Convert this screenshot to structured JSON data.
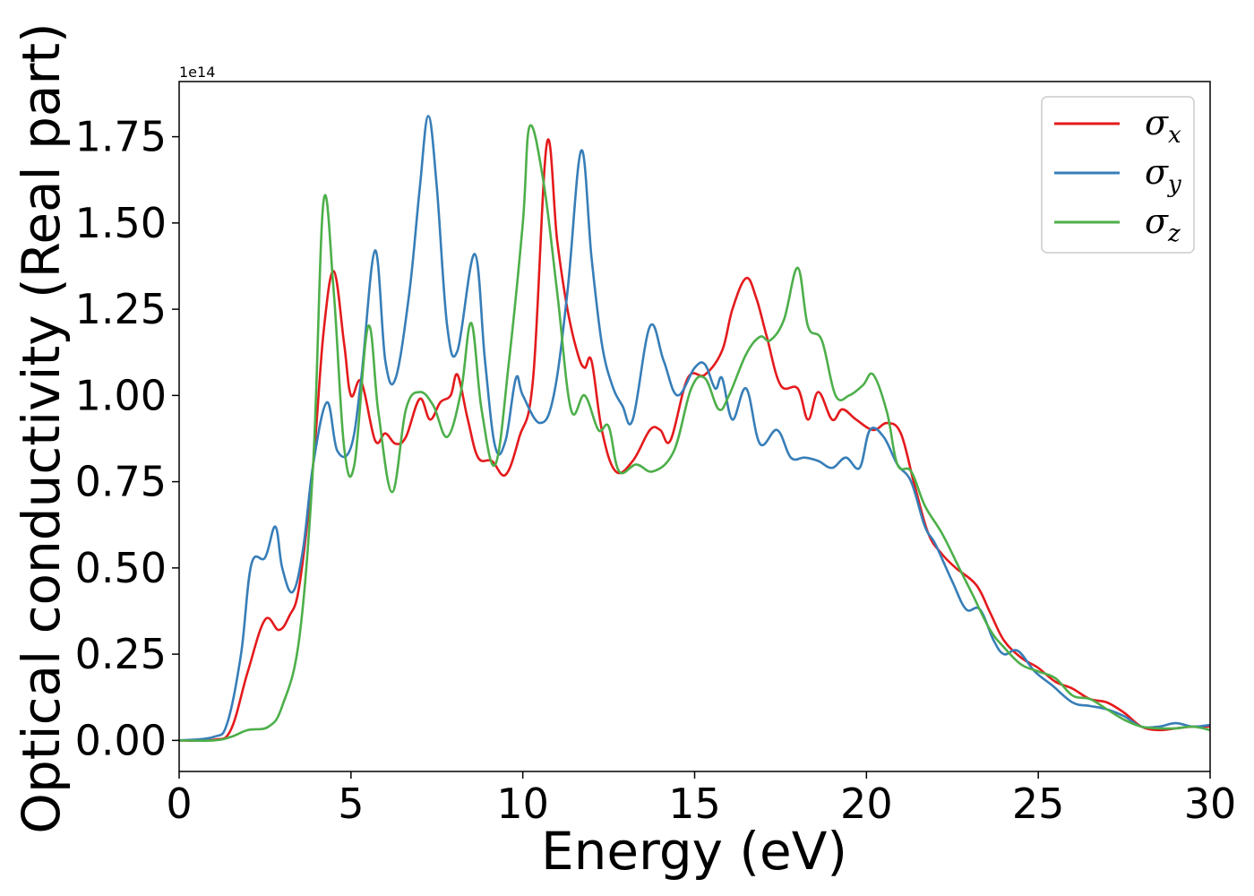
{
  "chart_data": {
    "type": "line",
    "title": "",
    "xlabel": "Energy (eV)",
    "ylabel": "Optical conductivity (Real part)",
    "y_offset_label": "1e14",
    "xlim": [
      0,
      30
    ],
    "ylim": [
      -0.09,
      1.91
    ],
    "xticks": [
      0,
      5,
      10,
      15,
      20,
      25,
      30
    ],
    "xtick_labels": [
      "0",
      "5",
      "10",
      "15",
      "20",
      "25",
      "30"
    ],
    "yticks": [
      0,
      0.25,
      0.5,
      0.75,
      1.0,
      1.25,
      1.5,
      1.75
    ],
    "ytick_labels": [
      "0.00",
      "0.25",
      "0.50",
      "0.75",
      "1.00",
      "1.25",
      "1.50",
      "1.75"
    ],
    "grid": false,
    "legend_position": "top-right",
    "series": [
      {
        "name": "σx",
        "symbol": "σ",
        "subscript": "x",
        "color": "#e41a1c",
        "points": [
          [
            0,
            0
          ],
          [
            1,
            0.002
          ],
          [
            1.5,
            0.03
          ],
          [
            2,
            0.2
          ],
          [
            2.5,
            0.35
          ],
          [
            2.9,
            0.32
          ],
          [
            3.2,
            0.36
          ],
          [
            3.5,
            0.45
          ],
          [
            3.9,
            0.8
          ],
          [
            4.2,
            1.18
          ],
          [
            4.5,
            1.36
          ],
          [
            4.8,
            1.15
          ],
          [
            5,
            1.0
          ],
          [
            5.3,
            1.04
          ],
          [
            5.7,
            0.87
          ],
          [
            6,
            0.89
          ],
          [
            6.3,
            0.86
          ],
          [
            6.6,
            0.88
          ],
          [
            7,
            0.99
          ],
          [
            7.3,
            0.93
          ],
          [
            7.6,
            0.98
          ],
          [
            7.9,
            1.0
          ],
          [
            8.1,
            1.06
          ],
          [
            8.4,
            0.93
          ],
          [
            8.7,
            0.82
          ],
          [
            9.1,
            0.81
          ],
          [
            9.5,
            0.77
          ],
          [
            9.9,
            0.88
          ],
          [
            10.3,
            1.05
          ],
          [
            10.7,
            1.73
          ],
          [
            11,
            1.45
          ],
          [
            11.3,
            1.25
          ],
          [
            11.6,
            1.12
          ],
          [
            11.8,
            1.08
          ],
          [
            12,
            1.1
          ],
          [
            12.3,
            0.9
          ],
          [
            12.7,
            0.78
          ],
          [
            13.2,
            0.81
          ],
          [
            13.7,
            0.9
          ],
          [
            14,
            0.9
          ],
          [
            14.3,
            0.87
          ],
          [
            14.8,
            1.05
          ],
          [
            15.3,
            1.06
          ],
          [
            15.8,
            1.13
          ],
          [
            16.1,
            1.25
          ],
          [
            16.5,
            1.34
          ],
          [
            16.8,
            1.28
          ],
          [
            17.1,
            1.17
          ],
          [
            17.5,
            1.03
          ],
          [
            18,
            1.02
          ],
          [
            18.3,
            0.93
          ],
          [
            18.6,
            1.01
          ],
          [
            19,
            0.93
          ],
          [
            19.3,
            0.96
          ],
          [
            19.7,
            0.93
          ],
          [
            20.2,
            0.9
          ],
          [
            20.6,
            0.92
          ],
          [
            21,
            0.89
          ],
          [
            21.4,
            0.74
          ],
          [
            21.8,
            0.6
          ],
          [
            22.2,
            0.54
          ],
          [
            22.6,
            0.5
          ],
          [
            23.2,
            0.45
          ],
          [
            23.6,
            0.37
          ],
          [
            24,
            0.29
          ],
          [
            24.5,
            0.24
          ],
          [
            25,
            0.21
          ],
          [
            25.5,
            0.17
          ],
          [
            26,
            0.15
          ],
          [
            26.5,
            0.12
          ],
          [
            27,
            0.11
          ],
          [
            27.5,
            0.08
          ],
          [
            28,
            0.04
          ],
          [
            28.5,
            0.03
          ],
          [
            29,
            0.035
          ],
          [
            29.5,
            0.04
          ],
          [
            30,
            0.04
          ]
        ]
      },
      {
        "name": "σy",
        "symbol": "σ",
        "subscript": "y",
        "color": "#377eb8",
        "points": [
          [
            0,
            0
          ],
          [
            1,
            0.01
          ],
          [
            1.4,
            0.05
          ],
          [
            1.8,
            0.25
          ],
          [
            2.1,
            0.51
          ],
          [
            2.5,
            0.53
          ],
          [
            2.8,
            0.62
          ],
          [
            3.0,
            0.5
          ],
          [
            3.3,
            0.43
          ],
          [
            3.6,
            0.55
          ],
          [
            3.9,
            0.8
          ],
          [
            4.3,
            0.98
          ],
          [
            4.6,
            0.84
          ],
          [
            5,
            0.85
          ],
          [
            5.3,
            1.05
          ],
          [
            5.7,
            1.42
          ],
          [
            6,
            1.1
          ],
          [
            6.3,
            1.05
          ],
          [
            6.7,
            1.3
          ],
          [
            7.0,
            1.6
          ],
          [
            7.25,
            1.81
          ],
          [
            7.5,
            1.6
          ],
          [
            7.8,
            1.2
          ],
          [
            8.1,
            1.13
          ],
          [
            8.6,
            1.41
          ],
          [
            8.9,
            1.1
          ],
          [
            9.2,
            0.85
          ],
          [
            9.5,
            0.87
          ],
          [
            9.8,
            1.05
          ],
          [
            10,
            1.0
          ],
          [
            10.5,
            0.92
          ],
          [
            10.9,
            1.0
          ],
          [
            11.3,
            1.3
          ],
          [
            11.7,
            1.71
          ],
          [
            12,
            1.4
          ],
          [
            12.3,
            1.15
          ],
          [
            12.6,
            1.03
          ],
          [
            12.9,
            0.97
          ],
          [
            13.2,
            0.93
          ],
          [
            13.7,
            1.2
          ],
          [
            14.1,
            1.1
          ],
          [
            14.5,
            1.0
          ],
          [
            15,
            1.08
          ],
          [
            15.3,
            1.09
          ],
          [
            15.6,
            1.02
          ],
          [
            15.8,
            1.05
          ],
          [
            16.1,
            0.93
          ],
          [
            16.5,
            1.02
          ],
          [
            16.9,
            0.86
          ],
          [
            17.4,
            0.9
          ],
          [
            17.8,
            0.82
          ],
          [
            18.2,
            0.82
          ],
          [
            18.6,
            0.81
          ],
          [
            19,
            0.79
          ],
          [
            19.4,
            0.82
          ],
          [
            19.8,
            0.79
          ],
          [
            20.1,
            0.9
          ],
          [
            20.5,
            0.88
          ],
          [
            20.9,
            0.8
          ],
          [
            21.3,
            0.75
          ],
          [
            21.7,
            0.62
          ],
          [
            22,
            0.57
          ],
          [
            22.5,
            0.46
          ],
          [
            22.9,
            0.38
          ],
          [
            23.3,
            0.38
          ],
          [
            23.7,
            0.29
          ],
          [
            24,
            0.25
          ],
          [
            24.4,
            0.26
          ],
          [
            24.9,
            0.2
          ],
          [
            25.4,
            0.16
          ],
          [
            26,
            0.11
          ],
          [
            26.5,
            0.1
          ],
          [
            27,
            0.09
          ],
          [
            27.5,
            0.07
          ],
          [
            28,
            0.04
          ],
          [
            28.5,
            0.04
          ],
          [
            29,
            0.05
          ],
          [
            29.5,
            0.04
          ],
          [
            30,
            0.045
          ]
        ]
      },
      {
        "name": "σz",
        "symbol": "σ",
        "subscript": "z",
        "color": "#4daf4a",
        "points": [
          [
            0,
            0
          ],
          [
            1,
            0.0
          ],
          [
            1.5,
            0.01
          ],
          [
            2,
            0.03
          ],
          [
            2.6,
            0.04
          ],
          [
            3.0,
            0.1
          ],
          [
            3.5,
            0.3
          ],
          [
            3.9,
            0.8
          ],
          [
            4.2,
            1.56
          ],
          [
            4.5,
            1.3
          ],
          [
            4.8,
            0.85
          ],
          [
            5.1,
            0.8
          ],
          [
            5.5,
            1.2
          ],
          [
            5.8,
            0.95
          ],
          [
            6.2,
            0.72
          ],
          [
            6.6,
            0.96
          ],
          [
            7,
            1.01
          ],
          [
            7.4,
            0.97
          ],
          [
            7.8,
            0.88
          ],
          [
            8.2,
            1.01
          ],
          [
            8.5,
            1.21
          ],
          [
            8.8,
            0.96
          ],
          [
            9.2,
            0.8
          ],
          [
            9.6,
            1.1
          ],
          [
            10.0,
            1.5
          ],
          [
            10.2,
            1.78
          ],
          [
            10.6,
            1.62
          ],
          [
            11.0,
            1.3
          ],
          [
            11.4,
            0.96
          ],
          [
            11.8,
            1.0
          ],
          [
            12.2,
            0.9
          ],
          [
            12.5,
            0.91
          ],
          [
            12.8,
            0.78
          ],
          [
            13.3,
            0.8
          ],
          [
            13.8,
            0.78
          ],
          [
            14.4,
            0.84
          ],
          [
            14.9,
            1.02
          ],
          [
            15.3,
            1.05
          ],
          [
            15.7,
            0.96
          ],
          [
            16,
            1.0
          ],
          [
            16.5,
            1.12
          ],
          [
            16.9,
            1.17
          ],
          [
            17.2,
            1.16
          ],
          [
            17.6,
            1.22
          ],
          [
            18.0,
            1.37
          ],
          [
            18.3,
            1.2
          ],
          [
            18.7,
            1.16
          ],
          [
            19.1,
            1.0
          ],
          [
            19.5,
            1.0
          ],
          [
            19.9,
            1.03
          ],
          [
            20.2,
            1.06
          ],
          [
            20.6,
            0.95
          ],
          [
            20.9,
            0.8
          ],
          [
            21.3,
            0.78
          ],
          [
            21.7,
            0.68
          ],
          [
            22.2,
            0.6
          ],
          [
            22.7,
            0.5
          ],
          [
            23.1,
            0.42
          ],
          [
            23.6,
            0.32
          ],
          [
            24,
            0.27
          ],
          [
            24.5,
            0.22
          ],
          [
            25,
            0.2
          ],
          [
            25.5,
            0.18
          ],
          [
            26,
            0.13
          ],
          [
            26.5,
            0.12
          ],
          [
            27,
            0.09
          ],
          [
            27.5,
            0.06
          ],
          [
            28,
            0.04
          ],
          [
            28.5,
            0.035
          ],
          [
            29,
            0.035
          ],
          [
            29.5,
            0.04
          ],
          [
            30,
            0.03
          ]
        ]
      }
    ]
  }
}
